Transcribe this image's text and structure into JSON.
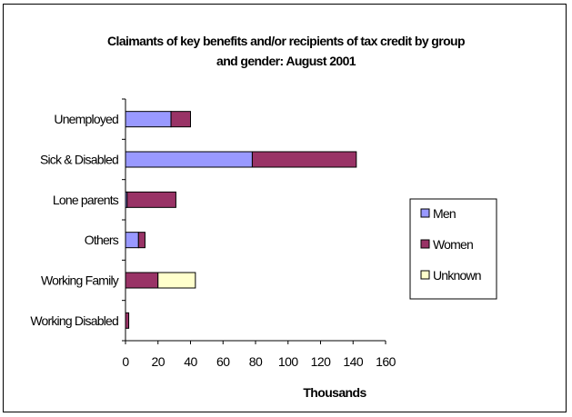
{
  "chart_data": {
    "type": "bar",
    "orientation": "horizontal",
    "stacked": true,
    "title_lines": [
      "Claimants of key benefits and/or recipients of tax credit by group",
      "and gender: August 2001"
    ],
    "xlabel": "Thousands",
    "ylabel": "",
    "xlim": [
      0,
      160
    ],
    "xticks": [
      0,
      20,
      40,
      60,
      80,
      100,
      120,
      140,
      160
    ],
    "grid": false,
    "legend_position": "right",
    "categories": [
      "Unemployed",
      "Sick & Disabled",
      "Lone parents",
      "Others",
      "Working Family",
      "Working Disabled"
    ],
    "series": [
      {
        "name": "Men",
        "color": "#9999ff",
        "values": [
          28,
          78,
          1,
          8,
          0,
          0
        ]
      },
      {
        "name": "Women",
        "color": "#993366",
        "values": [
          12,
          64,
          30,
          4,
          20,
          2
        ]
      },
      {
        "name": "Unknown",
        "color": "#ffffcc",
        "values": [
          0,
          0,
          0,
          0,
          23,
          0
        ]
      }
    ]
  }
}
